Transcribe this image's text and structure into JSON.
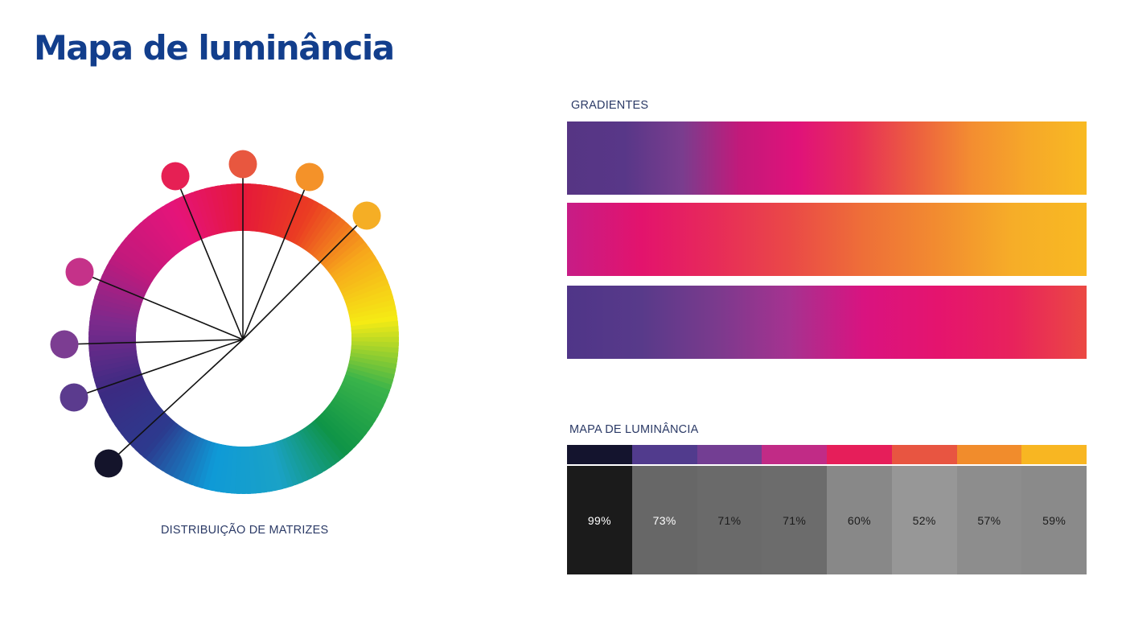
{
  "page": {
    "title": "Mapa de luminância"
  },
  "wheel": {
    "caption": "DISTRIBUIÇÃO DE MATRIZES",
    "hue_stops": [
      "#e5183a",
      "#ea3d22",
      "#f7a81b",
      "#f5eb14",
      "#39b34a",
      "#0f9447",
      "#1aa2c6",
      "#0f9ad7",
      "#2c3a8e",
      "#3b2b82",
      "#7b2a8c",
      "#c3197c",
      "#e5147a",
      "#e5183a"
    ],
    "swatches": [
      {
        "color": "#e62054"
      },
      {
        "color": "#e8573f"
      },
      {
        "color": "#f49229"
      },
      {
        "color": "#f5ae25"
      },
      {
        "color": "#c53289"
      },
      {
        "color": "#7c3d92"
      },
      {
        "color": "#5b3b8e"
      },
      {
        "color": "#14142b"
      }
    ]
  },
  "gradients": {
    "label": "GRADIENTES",
    "bars": [
      {
        "stops": [
          "#563584",
          "#583788",
          "#7a3d8e",
          "#c3197a",
          "#e0127a",
          "#e72d58",
          "#ec5d40",
          "#f38d31",
          "#f6a829",
          "#f8ba22"
        ]
      },
      {
        "stops": [
          "#c71c86",
          "#e3136d",
          "#e72b59",
          "#ea4947",
          "#ee6f38",
          "#f28c30",
          "#f6ad28",
          "#f8b922"
        ]
      },
      {
        "stops": [
          "#4f3588",
          "#583a8a",
          "#7a3a8d",
          "#a63290",
          "#d91380",
          "#e5146e",
          "#e8225c",
          "#eb4943"
        ]
      }
    ]
  },
  "luminance": {
    "label": "MAPA DE LUMINÂNCIA",
    "cells": [
      {
        "swatch": "#14142e",
        "value": "99%",
        "bg": "#1b1b1b",
        "text": "#ffffff"
      },
      {
        "swatch": "#513b8d",
        "value": "73%",
        "bg": "#676767",
        "text": "#ffffff"
      },
      {
        "swatch": "#733e93",
        "value": "71%",
        "bg": "#6a6a6a",
        "text": "#1c1c1c"
      },
      {
        "swatch": "#c12b86",
        "value": "71%",
        "bg": "#6c6c6c",
        "text": "#1c1c1c"
      },
      {
        "swatch": "#e61e5a",
        "value": "60%",
        "bg": "#888888",
        "text": "#1c1c1c"
      },
      {
        "swatch": "#e85541",
        "value": "52%",
        "bg": "#979797",
        "text": "#1c1c1c"
      },
      {
        "swatch": "#f18c2c",
        "value": "57%",
        "bg": "#8d8d8d",
        "text": "#1c1c1c"
      },
      {
        "swatch": "#f8b622",
        "value": "59%",
        "bg": "#8a8a8a",
        "text": "#1c1c1c"
      }
    ]
  }
}
